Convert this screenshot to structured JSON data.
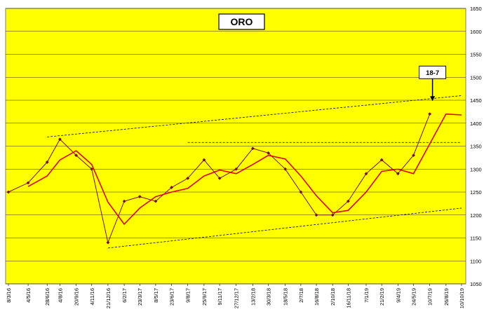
{
  "chart_data": {
    "type": "line",
    "title": "ORO",
    "xlabel": "",
    "ylabel": "",
    "ylim": [
      1050,
      1650
    ],
    "yticks": [
      1050,
      1100,
      1150,
      1200,
      1250,
      1300,
      1350,
      1400,
      1450,
      1500,
      1550,
      1600,
      1650
    ],
    "y_axis_position": "right",
    "grid": "horizontal",
    "legend": "none",
    "colors": {
      "background": "#FFFF00",
      "price": "#7A0A0A",
      "average": "#E60000",
      "guide_lines": "#000000"
    },
    "x_tick_labels": [
      "8/3/16",
      "4/5/16",
      "28/6/16",
      "4/8/16",
      "20/9/16",
      "4/11/16",
      "21/12/16",
      "6/2/17",
      "23/3/17",
      "8/5/17",
      "23/6/17",
      "9/8/17",
      "25/9/17",
      "9/11/17",
      "27/12/17",
      "13/2/18",
      "30/3/18",
      "18/5/18",
      "2/7/18",
      "16/8/18",
      "2/10/18",
      "16/11/18",
      "7/1/19",
      "21/2/19",
      "9/4/19",
      "24/5/19",
      "10/7/19",
      "26/8/19",
      "10/10/19"
    ],
    "series": [
      {
        "style": "line-with-markers",
        "x": [
          "8/3/16",
          "4/5/16",
          "28/6/16",
          "4/8/16",
          "20/9/16",
          "4/11/16",
          "21/12/16",
          "6/2/17",
          "23/3/17",
          "8/5/17",
          "23/6/17",
          "9/8/17",
          "25/9/17",
          "9/11/17",
          "27/12/17",
          "13/2/18",
          "30/3/18",
          "18/5/18",
          "2/7/18",
          "16/8/18",
          "2/10/18",
          "16/11/18",
          "7/1/19",
          "21/2/19",
          "9/4/19",
          "24/5/19",
          "10/7/19",
          "26/8/19",
          "10/10/19"
        ],
        "values": [
          1250,
          1270,
          1315,
          1365,
          1330,
          1300,
          1140,
          1230,
          1240,
          1230,
          1260,
          1280,
          1320,
          1280,
          1300,
          1345,
          1335,
          1300,
          1250,
          1200,
          1200,
          1230,
          1290,
          1320,
          1290,
          1330,
          1420,
          null,
          null
        ]
      },
      {
        "style": "line",
        "x": [
          "8/3/16",
          "4/5/16",
          "28/6/16",
          "4/8/16",
          "20/9/16",
          "4/11/16",
          "21/12/16",
          "6/2/17",
          "23/3/17",
          "8/5/17",
          "23/6/17",
          "9/8/17",
          "25/9/17",
          "9/11/17",
          "27/12/17",
          "13/2/18",
          "30/3/18",
          "18/5/18",
          "2/7/18",
          "16/8/18",
          "2/10/18",
          "16/11/18",
          "7/1/19",
          "21/2/19",
          "9/4/19",
          "24/5/19",
          "10/7/19",
          "26/8/19",
          "10/10/19"
        ],
        "values": [
          null,
          1262,
          1285,
          1320,
          1340,
          1310,
          1228,
          1180,
          1215,
          1240,
          1250,
          1258,
          1285,
          1298,
          1290,
          1310,
          1330,
          1322,
          1285,
          1242,
          1205,
          1210,
          1250,
          1295,
          1300,
          1290,
          1355,
          1420,
          1418
        ]
      }
    ],
    "annotations": {
      "label": "18-7",
      "x": "18/7/19",
      "y": 1445,
      "guides": [
        {
          "style": "dashed",
          "from": {
            "x": "28/6/16",
            "y": 1370
          },
          "to": {
            "x": "10/10/19",
            "y": 1460
          }
        },
        {
          "style": "dashed",
          "from": {
            "x": "9/8/17",
            "y": 1358
          },
          "to": {
            "x": "10/10/19",
            "y": 1358
          }
        },
        {
          "style": "dashed",
          "from": {
            "x": "21/12/16",
            "y": 1128
          },
          "to": {
            "x": "10/10/19",
            "y": 1215
          }
        }
      ]
    }
  }
}
